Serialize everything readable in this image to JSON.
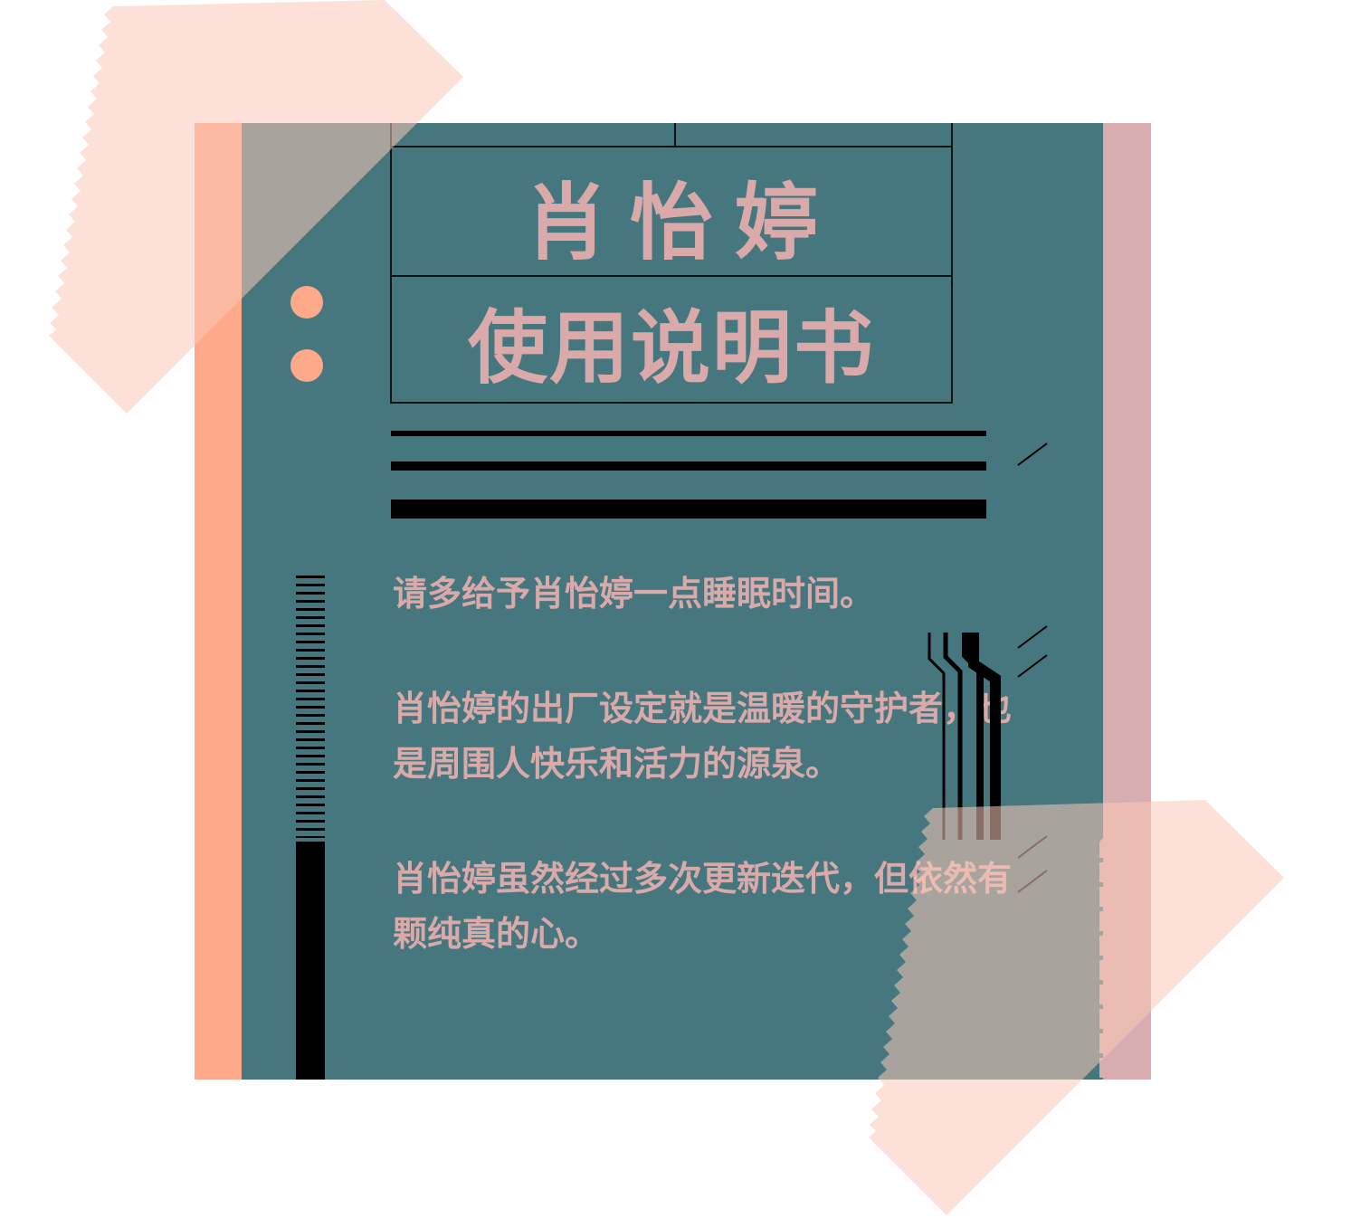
{
  "colors": {
    "teal": "#46767e",
    "orange": "#fda98a",
    "rose": "#d7adb0",
    "pink_text": "#d9aaa9",
    "tape": "#fcc9b8"
  },
  "card": {
    "title": "肖怡婷",
    "subtitle": "使用说明书",
    "paragraphs": [
      "请多给予肖怡婷一点睡眠时间。",
      "肖怡婷的出厂设定就是温暖的守护者，也是周围人快乐和活力的源泉。",
      "肖怡婷虽然经过多次更新迭代，但依然有颗纯真的心。"
    ]
  }
}
